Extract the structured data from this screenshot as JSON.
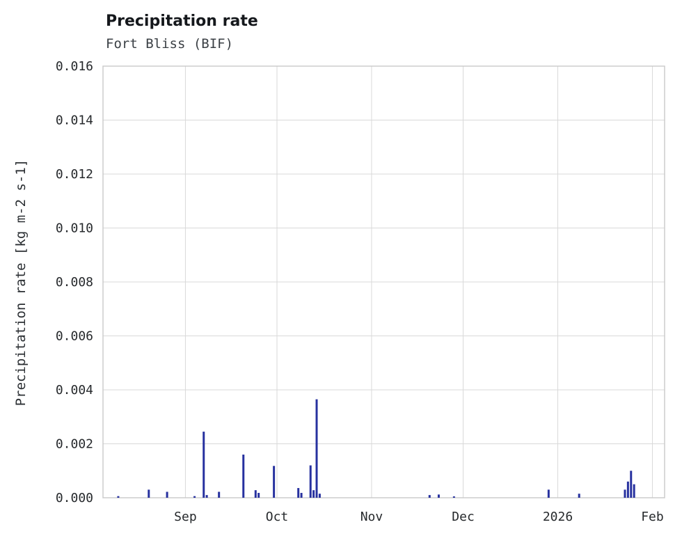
{
  "header": {
    "title": "Precipitation rate",
    "subtitle": "Fort Bliss (BIF)"
  },
  "chart_data": {
    "type": "bar",
    "title": "Precipitation rate",
    "subtitle": "Fort Bliss (BIF)",
    "xlabel": "",
    "ylabel": "Precipitation rate [kg m-2 s-1]",
    "ylim": [
      0,
      0.016
    ],
    "y_ticks": [
      0.0,
      0.002,
      0.004,
      0.006,
      0.008,
      0.01,
      0.012,
      0.014,
      0.016
    ],
    "x_range": [
      "2025-08-05",
      "2026-02-05"
    ],
    "x_ticks": [
      {
        "date": "2025-09-01",
        "label": "Sep"
      },
      {
        "date": "2025-10-01",
        "label": "Oct"
      },
      {
        "date": "2025-11-01",
        "label": "Nov"
      },
      {
        "date": "2025-12-01",
        "label": "Dec"
      },
      {
        "date": "2026-01-01",
        "label": "2026"
      },
      {
        "date": "2026-02-01",
        "label": "Feb"
      }
    ],
    "grid": true,
    "legend": "none",
    "bar_color": "#27319f",
    "points": [
      {
        "date": "2025-08-10",
        "value": 6e-05
      },
      {
        "date": "2025-08-20",
        "value": 0.0003
      },
      {
        "date": "2025-08-26",
        "value": 0.00022
      },
      {
        "date": "2025-09-04",
        "value": 6e-05
      },
      {
        "date": "2025-09-07",
        "value": 0.00245
      },
      {
        "date": "2025-09-08",
        "value": 0.0001
      },
      {
        "date": "2025-09-12",
        "value": 0.00022
      },
      {
        "date": "2025-09-20",
        "value": 0.0016
      },
      {
        "date": "2025-09-24",
        "value": 0.00028
      },
      {
        "date": "2025-09-25",
        "value": 0.00018
      },
      {
        "date": "2025-09-30",
        "value": 0.00118
      },
      {
        "date": "2025-10-08",
        "value": 0.00036
      },
      {
        "date": "2025-10-09",
        "value": 0.00018
      },
      {
        "date": "2025-10-12",
        "value": 0.0012
      },
      {
        "date": "2025-10-13",
        "value": 0.00028
      },
      {
        "date": "2025-10-14",
        "value": 0.00365
      },
      {
        "date": "2025-10-15",
        "value": 0.00015
      },
      {
        "date": "2025-11-20",
        "value": 0.0001
      },
      {
        "date": "2025-11-23",
        "value": 0.00012
      },
      {
        "date": "2025-11-28",
        "value": 5e-05
      },
      {
        "date": "2025-12-29",
        "value": 0.0003
      },
      {
        "date": "2026-01-08",
        "value": 0.00015
      },
      {
        "date": "2026-01-23",
        "value": 0.0003
      },
      {
        "date": "2026-01-24",
        "value": 0.0006
      },
      {
        "date": "2026-01-25",
        "value": 0.001
      },
      {
        "date": "2026-01-26",
        "value": 0.0005
      }
    ]
  }
}
